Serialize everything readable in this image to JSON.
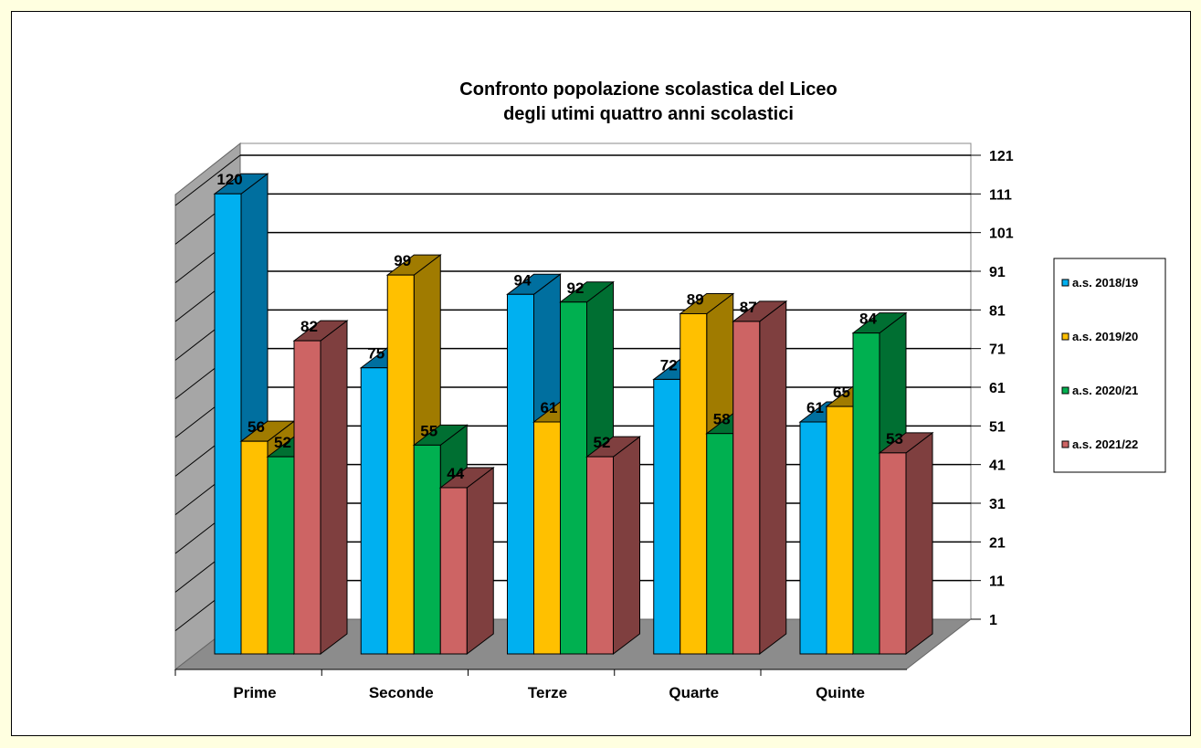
{
  "chart_data": {
    "type": "bar",
    "style": "3d-clustered-column",
    "title_lines": [
      "Confronto popolazione scolastica  del Liceo",
      "degli utimi quattro anni  scolastici"
    ],
    "categories": [
      "Prime",
      "Seconde",
      "Terze",
      "Quarte",
      "Quinte"
    ],
    "series": [
      {
        "name": "a.s. 2018/19",
        "values": [
          120,
          75,
          94,
          72,
          61
        ],
        "color": "#00B0F0",
        "side_color": "#006F9F"
      },
      {
        "name": "a.s. 2019/20",
        "values": [
          56,
          99,
          61,
          89,
          65
        ],
        "color": "#FFC000",
        "side_color": "#A07B00"
      },
      {
        "name": "a.s. 2020/21",
        "values": [
          52,
          55,
          92,
          58,
          84
        ],
        "color": "#00B050",
        "side_color": "#006F32"
      },
      {
        "name": "a.s. 2021/22",
        "values": [
          82,
          44,
          52,
          87,
          53
        ],
        "color": "#CD6464",
        "side_color": "#7F3F3F"
      }
    ],
    "y_ticks": [
      "1",
      "11",
      "21",
      "31",
      "41",
      "51",
      "61",
      "71",
      "81",
      "91",
      "101",
      "111",
      "121"
    ],
    "ylim": [
      1,
      121
    ],
    "y_axis_side": "right",
    "grid": true,
    "data_labels": true,
    "legend_position": "right",
    "background_color": "#FFFFE0"
  }
}
